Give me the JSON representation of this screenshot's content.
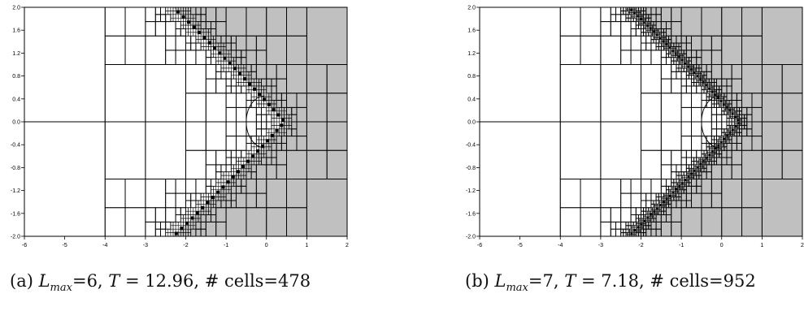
{
  "chart_data": [
    {
      "type": "diagram",
      "xlim": [
        -6,
        2
      ],
      "ylim": [
        -2.0,
        2.0
      ],
      "xticks": [
        "-6",
        "-5",
        "-4",
        "-3",
        "-2",
        "-1",
        "0",
        "1",
        "2"
      ],
      "yticks": [
        "2.0",
        "1.6",
        "1.2",
        "0.8",
        "0.4",
        "0.0",
        "-0.4",
        "-0.8",
        "-1.2",
        "-1.6",
        "-2.0"
      ],
      "max_level": 6,
      "shaded_fill": "#c0c0c0",
      "caption": {
        "tag": "(a)",
        "var": "L",
        "sub": "max",
        "level_text": "=6,",
        "t_var": "T",
        "t_text": "= 12.96,",
        "cells_text": "# cells=478"
      }
    },
    {
      "type": "diagram",
      "xlim": [
        -6,
        2
      ],
      "ylim": [
        -2.0,
        2.0
      ],
      "xticks": [
        "-6",
        "-5",
        "-4",
        "-3",
        "-2",
        "-1",
        "0",
        "1",
        "2"
      ],
      "yticks": [
        "2.0",
        "1.6",
        "1.2",
        "0.8",
        "0.4",
        "0.0",
        "-0.4",
        "-0.8",
        "-1.2",
        "-1.6",
        "-2.0"
      ],
      "max_level": 7,
      "shaded_fill": "#c0c0c0",
      "caption": {
        "tag": "(b)",
        "var": "L",
        "sub": "max",
        "level_text": "=7,",
        "t_var": "T",
        "t_text": "= 7.18,",
        "cells_text": "# cells=952"
      }
    }
  ]
}
